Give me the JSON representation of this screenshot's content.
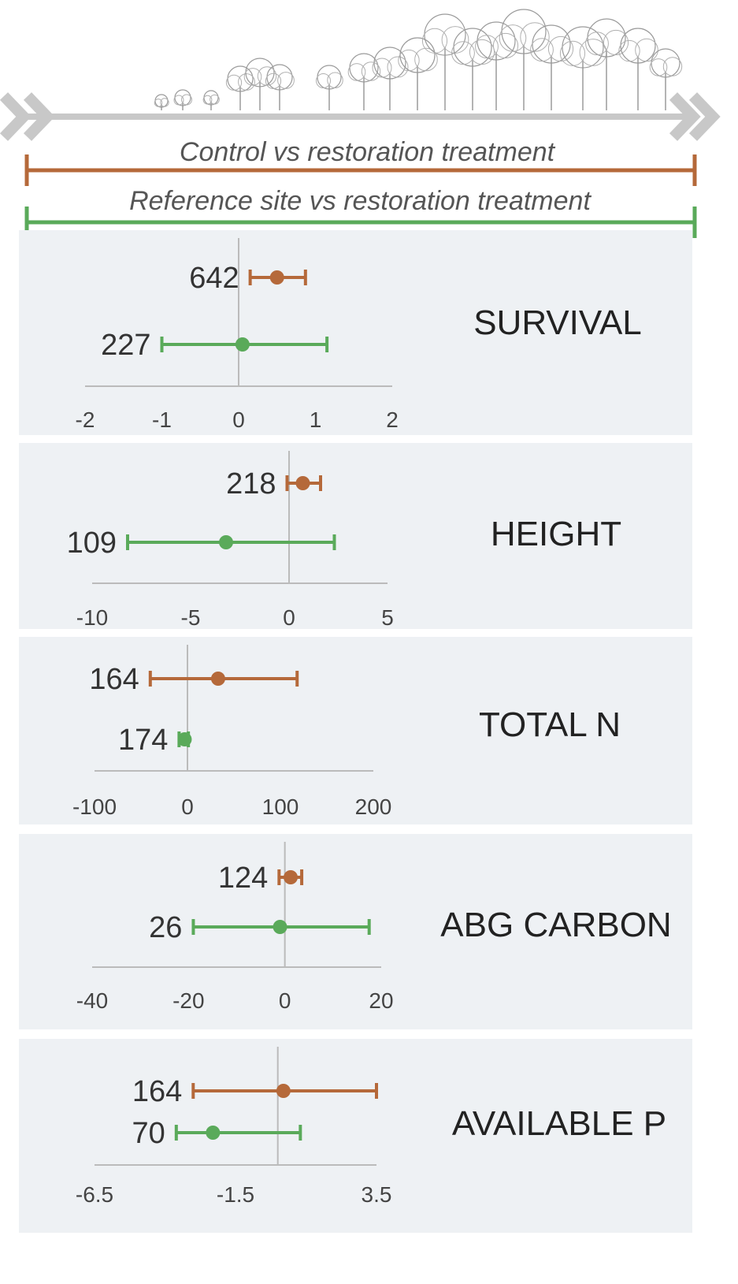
{
  "legend": {
    "control": "Control vs restoration treatment",
    "reference": "Reference site vs restoration treatment"
  },
  "colors": {
    "control": "#b5693a",
    "reference": "#5aaa5a",
    "panel_bg": "#eef1f4",
    "axis": "#bbbbbb",
    "arrow": "#c8c8c8"
  },
  "chart_data": [
    {
      "type": "forest",
      "title": "SURVIVAL",
      "xlim": [
        -2,
        2
      ],
      "ticks": [
        -2,
        -1,
        0,
        1,
        2
      ],
      "tick_labels": [
        "-2",
        "-1",
        "0",
        "1",
        "2"
      ],
      "series": [
        {
          "name": "Control vs restoration treatment",
          "n": "642",
          "estimate": 0.5,
          "ci": [
            0.15,
            0.87
          ]
        },
        {
          "name": "Reference site vs restoration treatment",
          "n": "227",
          "estimate": 0.05,
          "ci": [
            -1.0,
            1.15
          ]
        }
      ]
    },
    {
      "type": "forest",
      "title": "HEIGHT",
      "xlim": [
        -10,
        5
      ],
      "ticks": [
        -10,
        -5,
        0,
        5
      ],
      "tick_labels": [
        "-10",
        "-5",
        "0",
        "5"
      ],
      "series": [
        {
          "name": "Control vs restoration treatment",
          "n": "218",
          "estimate": 0.7,
          "ci": [
            -0.1,
            1.6
          ]
        },
        {
          "name": "Reference site vs restoration treatment",
          "n": "109",
          "estimate": -3.2,
          "ci": [
            -8.2,
            2.3
          ]
        }
      ]
    },
    {
      "type": "forest",
      "title": "TOTAL  N",
      "xlim": [
        -100,
        200
      ],
      "ticks": [
        -100,
        0,
        100,
        200
      ],
      "tick_labels": [
        "-100",
        "0",
        "100",
        "200"
      ],
      "series": [
        {
          "name": "Control vs restoration treatment",
          "n": "164",
          "estimate": 33,
          "ci": [
            -40,
            118
          ]
        },
        {
          "name": "Reference site vs restoration treatment",
          "n": "174",
          "estimate": -3,
          "ci": [
            -9,
            1
          ]
        }
      ]
    },
    {
      "type": "forest",
      "title": "ABG CARBON",
      "xlim": [
        -40,
        20
      ],
      "ticks": [
        -40,
        -20,
        0,
        20
      ],
      "tick_labels": [
        "-40",
        "-20",
        "0",
        "20"
      ],
      "series": [
        {
          "name": "Control vs restoration treatment",
          "n": "124",
          "estimate": 1.2,
          "ci": [
            -1.2,
            3.5
          ]
        },
        {
          "name": "Reference site vs restoration treatment",
          "n": "26",
          "estimate": -1.0,
          "ci": [
            -19.0,
            17.5
          ]
        }
      ]
    },
    {
      "type": "forest",
      "title": "AVAILABLE  P",
      "xlim": [
        -6.5,
        3.5
      ],
      "ticks": [
        -6.5,
        -1.5,
        3.5
      ],
      "tick_labels": [
        "-6.5",
        "-1.5",
        "3.5"
      ],
      "series": [
        {
          "name": "Control vs restoration treatment",
          "n": "164",
          "estimate": 0.2,
          "ci": [
            -3.0,
            3.5
          ]
        },
        {
          "name": "Reference site vs restoration treatment",
          "n": "70",
          "estimate": -2.3,
          "ci": [
            -3.6,
            0.8
          ]
        }
      ]
    }
  ]
}
